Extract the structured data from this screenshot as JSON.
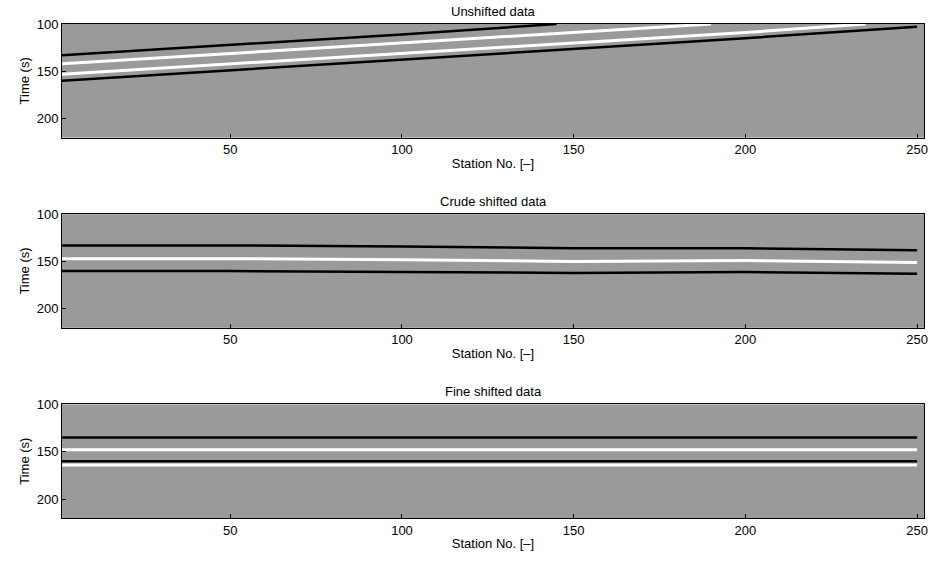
{
  "chart_data": [
    {
      "type": "line",
      "title": "Unshifted data",
      "x_label": "Station No. [–]",
      "y_label": "Time (s)",
      "xlim": [
        1,
        252
      ],
      "ylim": [
        220,
        100
      ],
      "xticks": [
        50,
        100,
        150,
        200,
        250
      ],
      "yticks": [
        100,
        150,
        200
      ],
      "series": [
        {
          "color": "#000000",
          "x": [
            1,
            50,
            100,
            145
          ],
          "values": [
            133,
            122,
            111,
            100
          ]
        },
        {
          "color": "#ffffff",
          "x": [
            1,
            50,
            100,
            150,
            190
          ],
          "values": [
            142,
            131,
            120,
            109,
            100
          ]
        },
        {
          "color": "#ffffff",
          "x": [
            1,
            50,
            100,
            150,
            200,
            235
          ],
          "values": [
            153,
            142,
            131,
            120,
            109,
            100
          ]
        },
        {
          "color": "#000000",
          "x": [
            1,
            50,
            100,
            150,
            200,
            250
          ],
          "values": [
            160,
            149,
            137,
            126,
            115,
            103
          ]
        }
      ]
    },
    {
      "type": "line",
      "title": "Crude shifted data",
      "x_label": "Station No. [–]",
      "y_label": "Time (s)",
      "xlim": [
        1,
        252
      ],
      "ylim": [
        220,
        100
      ],
      "xticks": [
        50,
        100,
        150,
        200,
        250
      ],
      "yticks": [
        100,
        150,
        200
      ],
      "series": [
        {
          "color": "#000000",
          "x": [
            1,
            50,
            100,
            150,
            200,
            250
          ],
          "values": [
            133,
            133,
            134,
            136,
            136,
            138
          ]
        },
        {
          "color": "#ffffff",
          "x": [
            1,
            50,
            100,
            150,
            200,
            250
          ],
          "values": [
            147,
            147,
            148,
            150,
            149,
            151
          ]
        },
        {
          "color": "#000000",
          "x": [
            1,
            50,
            100,
            150,
            200,
            250
          ],
          "values": [
            160,
            160,
            161,
            162,
            161,
            163
          ]
        }
      ]
    },
    {
      "type": "line",
      "title": "Fine shifted data",
      "x_label": "Station No. [–]",
      "y_label": "Time (s)",
      "xlim": [
        1,
        252
      ],
      "ylim": [
        220,
        100
      ],
      "xticks": [
        50,
        100,
        150,
        200,
        250
      ],
      "yticks": [
        100,
        150,
        200
      ],
      "series": [
        {
          "color": "#000000",
          "x": [
            1,
            50,
            100,
            150,
            200,
            250
          ],
          "values": [
            135,
            135,
            135,
            135,
            135,
            135
          ]
        },
        {
          "color": "#ffffff",
          "x": [
            1,
            50,
            100,
            150,
            200,
            250
          ],
          "values": [
            148,
            148,
            148,
            148,
            148,
            148
          ]
        },
        {
          "color": "#000000",
          "x": [
            1,
            50,
            100,
            150,
            200,
            250
          ],
          "values": [
            160,
            160,
            160,
            160,
            160,
            160
          ]
        },
        {
          "color": "#ffffff",
          "x": [
            1,
            50,
            100,
            150,
            200,
            250
          ],
          "values": [
            164,
            164,
            164,
            164,
            164,
            164
          ]
        }
      ]
    }
  ]
}
